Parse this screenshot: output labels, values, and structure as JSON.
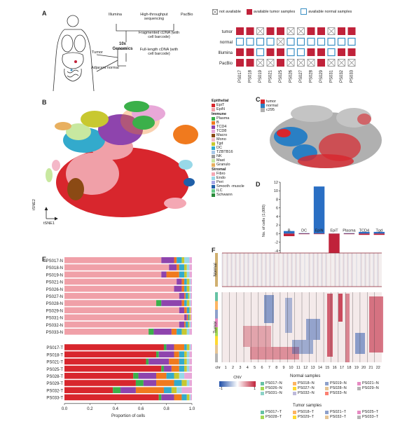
{
  "panels": {
    "a": "A",
    "b": "B",
    "c": "C",
    "d": "D",
    "e": "E",
    "f": "F"
  },
  "panel_a": {
    "illumina": "Illumina",
    "hts": "High-throughput sequencing",
    "pacbio": "PacBio",
    "fragmented": "Fragmented cDNA (with cell barcode)",
    "fulllength": "Full-length cDNA (with cell barcode)",
    "genomics": "10x Genomics",
    "tumor": "Tumor",
    "adjacent": "Adjacent normal",
    "legend": {
      "na": "not available",
      "tumor": "available tumor samples",
      "normal": "available normal samples"
    },
    "rows": [
      "tumor",
      "normal",
      "Illumina",
      "PacBio"
    ],
    "samples": [
      "PS017",
      "PS018",
      "PS019",
      "PS021",
      "PS025",
      "PS026",
      "PS027",
      "PS028",
      "PS029",
      "PS031",
      "PS032",
      "PS033"
    ],
    "grid": [
      [
        "t",
        "t",
        "x",
        "t",
        "t",
        "x",
        "x",
        "t",
        "t",
        "x",
        "t",
        "t"
      ],
      [
        "n",
        "n",
        "n",
        "n",
        "x",
        "n",
        "n",
        "n",
        "n",
        "n",
        "n",
        "n"
      ],
      [
        "t",
        "t",
        "n",
        "t",
        "t",
        "n",
        "n",
        "t",
        "t",
        "n",
        "t",
        "t"
      ],
      [
        "t",
        "t",
        "x",
        "x",
        "t",
        "x",
        "x",
        "x",
        "t",
        "x",
        "x",
        "x"
      ]
    ],
    "colors": {
      "tumor": "#c0223a",
      "normal": "#3a8fc4",
      "na": "#888888"
    }
  },
  "panel_b": {
    "axis_y": "tSNE2",
    "axis_x": "tSNE1",
    "legend_groups": [
      {
        "title": "Epithelial",
        "items": [
          {
            "label": "EpiT",
            "color": "#d8262d"
          },
          {
            "label": "EpiN",
            "color": "#f0a0a8"
          }
        ]
      },
      {
        "title": "Immune",
        "items": [
          {
            "label": "Plasma",
            "color": "#3bb04a"
          },
          {
            "label": "B",
            "color": "#f07a1e"
          },
          {
            "label": "TCD4",
            "color": "#8e44ad"
          },
          {
            "label": "TCD8",
            "color": "#e8a8d8"
          },
          {
            "label": "Macro",
            "color": "#8b4a14"
          },
          {
            "label": "Mono",
            "color": "#f4b8c8"
          },
          {
            "label": "Tgd",
            "color": "#c8c830"
          },
          {
            "label": "DC",
            "color": "#33aacc"
          },
          {
            "label": "TZBTB16",
            "color": "#aac8e8"
          },
          {
            "label": "NK",
            "color": "#9a9a9a"
          },
          {
            "label": "Mast",
            "color": "#c8e8a0"
          },
          {
            "label": "Granulo",
            "color": "#e8b060"
          }
        ]
      },
      {
        "title": "Stromal",
        "items": [
          {
            "label": "Fibro",
            "color": "#f4a8b4"
          },
          {
            "label": "Endo",
            "color": "#98d8e8"
          },
          {
            "label": "Peri",
            "color": "#a8a8e8"
          },
          {
            "label": "Smooth -muscle",
            "color": "#1f5fa8"
          },
          {
            "label": "ILC",
            "color": "#66cc88"
          },
          {
            "label": "Schwann",
            "color": "#2a8a3a"
          }
        ]
      }
    ]
  },
  "panel_c": {
    "legend": [
      {
        "label": "tumor",
        "color": "#d8262d"
      },
      {
        "label": "normal",
        "color": "#2a7fc4"
      },
      {
        "label": "c295",
        "color": "#b0b0b0"
      }
    ]
  },
  "chart_data": [
    {
      "type": "bar",
      "panel": "D",
      "ylabel": "No. of cells (1,000)",
      "ylim": [
        -6,
        12
      ],
      "yticks": [
        "12",
        "10",
        "8",
        "6",
        "4",
        "2",
        "0",
        "-2",
        "-4",
        "-6"
      ],
      "categories": [
        "B",
        "DC",
        "EpiN",
        "EpiT",
        "Plasma",
        "TCD4",
        "Tgd"
      ],
      "series": [
        {
          "color": "#2a6fc4",
          "values": [
            0.6,
            0.1,
            11.0,
            0.0,
            0.1,
            0.4,
            0.4
          ]
        },
        {
          "color": "#c0223a",
          "values": [
            -0.6,
            -0.1,
            0.0,
            -5.8,
            -0.1,
            -0.3,
            -0.3
          ]
        }
      ]
    },
    {
      "type": "bar",
      "panel": "E",
      "xlabel": "Proportion of cells",
      "xticks": [
        "0.0",
        "0.2",
        "0.4",
        "0.6",
        "0.8",
        "1.0"
      ],
      "categories": [
        "PS017-N",
        "PS018-N",
        "PS019-N",
        "PS021-N",
        "PS026-N",
        "PS027-N",
        "PS028-N",
        "PS029-N",
        "PS031-N",
        "PS032-N",
        "PS033-N",
        "PS017-T",
        "PS018-T",
        "PS021-T",
        "PS025-T",
        "PS028-T",
        "PS029-T",
        "PS032-T",
        "PS033-T"
      ],
      "segment_colors": [
        "#f0a0a8",
        "#d8262d",
        "#3bb04a",
        "#8e44ad",
        "#f07a1e",
        "#33aacc",
        "#c8c830",
        "#98d8e8",
        "#e8a8d8"
      ],
      "values": [
        [
          0.76,
          0.0,
          0.0,
          0.1,
          0.02,
          0.04,
          0.02,
          0.04,
          0.02
        ],
        [
          0.82,
          0.0,
          0.0,
          0.06,
          0.02,
          0.04,
          0.02,
          0.02,
          0.02
        ],
        [
          0.76,
          0.0,
          0.0,
          0.04,
          0.1,
          0.04,
          0.02,
          0.02,
          0.02
        ],
        [
          0.88,
          0.0,
          0.0,
          0.04,
          0.02,
          0.02,
          0.02,
          0.01,
          0.01
        ],
        [
          0.86,
          0.0,
          0.0,
          0.06,
          0.02,
          0.02,
          0.02,
          0.01,
          0.01
        ],
        [
          0.9,
          0.0,
          0.0,
          0.04,
          0.01,
          0.02,
          0.01,
          0.01,
          0.01
        ],
        [
          0.72,
          0.0,
          0.04,
          0.16,
          0.02,
          0.02,
          0.02,
          0.01,
          0.01
        ],
        [
          0.9,
          0.0,
          0.0,
          0.04,
          0.02,
          0.02,
          0.01,
          0.0,
          0.01
        ],
        [
          0.94,
          0.0,
          0.0,
          0.02,
          0.01,
          0.01,
          0.01,
          0.0,
          0.01
        ],
        [
          0.9,
          0.0,
          0.0,
          0.04,
          0.01,
          0.02,
          0.01,
          0.01,
          0.01
        ],
        [
          0.66,
          0.0,
          0.04,
          0.14,
          0.04,
          0.04,
          0.04,
          0.02,
          0.02
        ],
        [
          0.0,
          0.78,
          0.02,
          0.06,
          0.08,
          0.02,
          0.02,
          0.01,
          0.01
        ],
        [
          0.0,
          0.72,
          0.02,
          0.12,
          0.04,
          0.04,
          0.02,
          0.02,
          0.02
        ],
        [
          0.0,
          0.64,
          0.02,
          0.16,
          0.08,
          0.04,
          0.02,
          0.02,
          0.02
        ],
        [
          0.0,
          0.76,
          0.02,
          0.06,
          0.06,
          0.04,
          0.02,
          0.02,
          0.02
        ],
        [
          0.0,
          0.54,
          0.04,
          0.14,
          0.08,
          0.06,
          0.04,
          0.04,
          0.06
        ],
        [
          0.0,
          0.56,
          0.06,
          0.1,
          0.14,
          0.06,
          0.04,
          0.02,
          0.02
        ],
        [
          0.0,
          0.38,
          0.06,
          0.12,
          0.22,
          0.06,
          0.04,
          0.04,
          0.08
        ],
        [
          0.0,
          0.74,
          0.02,
          0.1,
          0.06,
          0.04,
          0.02,
          0.01,
          0.01
        ]
      ]
    }
  ],
  "panel_f": {
    "normal_label": "Normal",
    "tumor_label": "Tumor",
    "chr_label": "chr",
    "chromosomes": [
      "1",
      "2",
      "3",
      "4",
      "5",
      "6",
      "7",
      "8",
      "9",
      "10",
      "11",
      "12",
      "13",
      "14",
      "15",
      "16",
      "17",
      "18",
      "19",
      "20",
      "21",
      "22"
    ],
    "cnv_label": "CNV",
    "cnv_min": "-1",
    "cnv_max": "1",
    "normal_title": "Normal samples",
    "tumor_title": "Tumor samples",
    "normal_samples": [
      {
        "label": "PS017−N",
        "color": "#66c2a4"
      },
      {
        "label": "PS018−N",
        "color": "#fdb462"
      },
      {
        "label": "PS019−N",
        "color": "#8da0cb"
      },
      {
        "label": "PS021−N",
        "color": "#e78ac3"
      },
      {
        "label": "PS026−N",
        "color": "#a6d854"
      },
      {
        "label": "PS027−N",
        "color": "#ffd92f"
      },
      {
        "label": "PS028−N",
        "color": "#e5c494"
      },
      {
        "label": "PS029−N",
        "color": "#b3b3b3"
      },
      {
        "label": "PS031−N",
        "color": "#8dd3c7"
      },
      {
        "label": "PS032−N",
        "color": "#bebada"
      },
      {
        "label": "PS033−N",
        "color": "#fb8072"
      }
    ],
    "tumor_samples": [
      {
        "label": "PS017−T",
        "color": "#66c2a4"
      },
      {
        "label": "PS018−T",
        "color": "#fdb462"
      },
      {
        "label": "PS021−T",
        "color": "#8da0cb"
      },
      {
        "label": "PS025−T",
        "color": "#e78ac3"
      },
      {
        "label": "PS028−T",
        "color": "#a6d854"
      },
      {
        "label": "PS029−T",
        "color": "#ffd92f"
      },
      {
        "label": "PS032−T",
        "color": "#e5c494"
      },
      {
        "label": "PS033−T",
        "color": "#b3b3b3"
      }
    ]
  }
}
